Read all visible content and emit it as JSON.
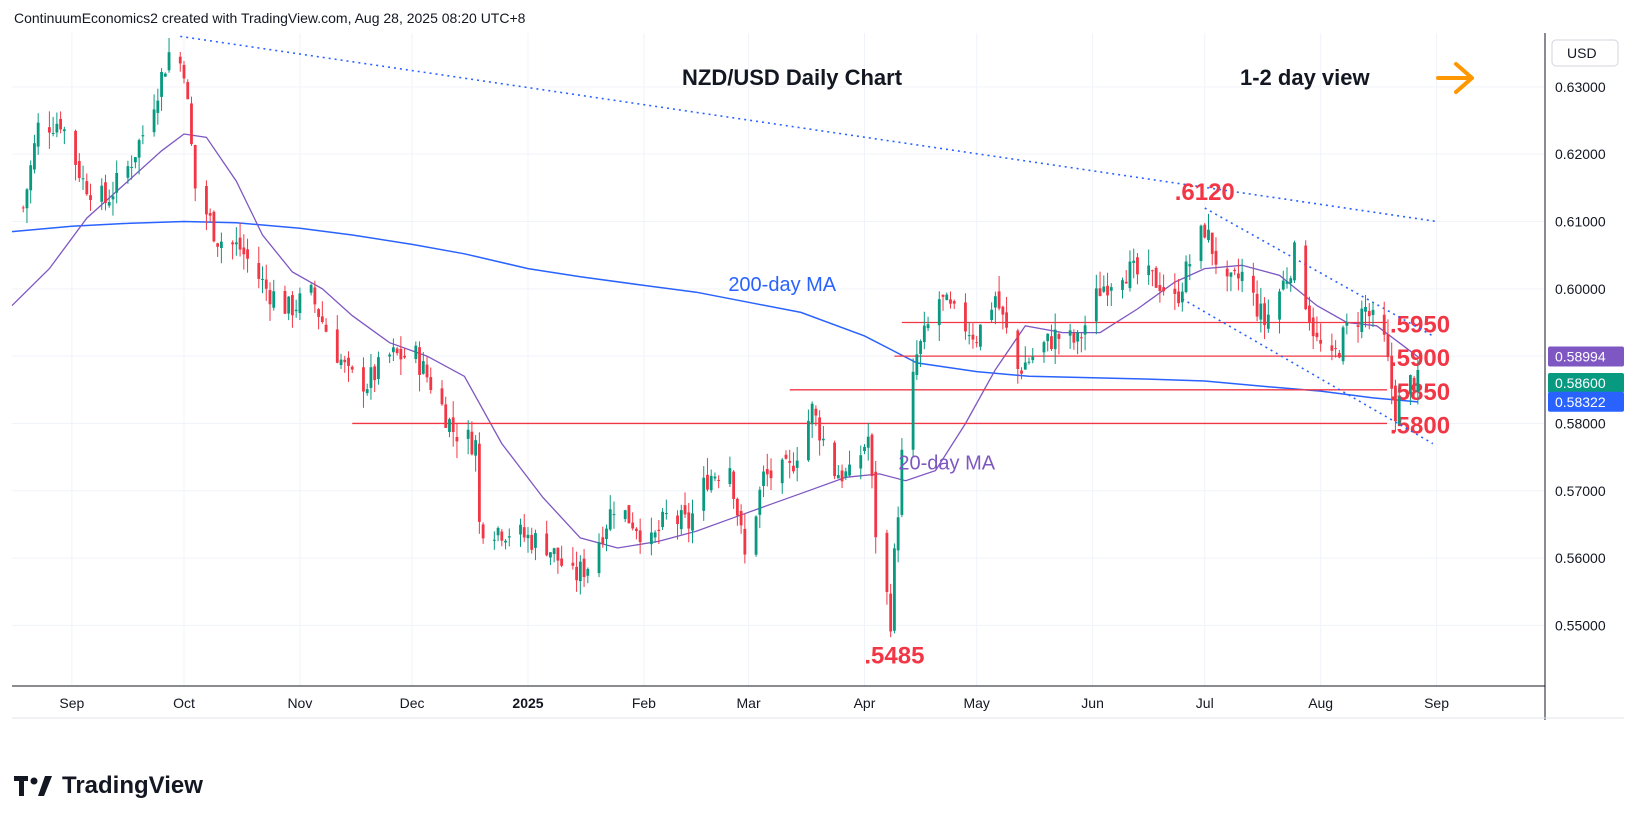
{
  "header": {
    "attribution": "ContinuumEconomics2 created with TradingView.com, Aug 28, 2025 08:20 UTC+8"
  },
  "footer": {
    "brand": "TradingView"
  },
  "chart_data": {
    "type": "candlestick",
    "title": "NZD/USD Daily Chart",
    "view_label": "1-2 day view",
    "view_arrow_icon": "arrow-right-icon",
    "currency": "USD",
    "ylim": [
      0.541,
      0.638
    ],
    "y_ticks": [
      "0.63000",
      "0.62000",
      "0.61000",
      "0.60000",
      "0.59000",
      "0.58000",
      "0.57000",
      "0.56000",
      "0.55000"
    ],
    "y_tick_values": [
      0.63,
      0.62,
      0.61,
      0.6,
      0.59,
      0.58,
      0.57,
      0.56,
      0.55
    ],
    "x_ticks": [
      "Sep",
      "Oct",
      "Nov",
      "Dec",
      "2025",
      "Feb",
      "Mar",
      "Apr",
      "May",
      "Jun",
      "Jul",
      "Aug",
      "Sep"
    ],
    "x_tick_dates": [
      "2024-09-01",
      "2024-10-01",
      "2024-11-01",
      "2024-12-01",
      "2025-01-01",
      "2025-02-01",
      "2025-03-01",
      "2025-04-01",
      "2025-05-01",
      "2025-06-01",
      "2025-07-01",
      "2025-08-01",
      "2025-09-01"
    ],
    "x_range": [
      "2024-08-16",
      "2025-09-30"
    ],
    "colors": {
      "up": "#089981",
      "down": "#f23645",
      "ma20": "#7e57c2",
      "ma200": "#2962ff",
      "levels": "#f23645",
      "trend": "#2962ff",
      "arrow": "#ff9800"
    },
    "price_badges": [
      {
        "label": "0.58994",
        "value": 0.58994,
        "color": "#7e57c2"
      },
      {
        "label": "0.58600",
        "value": 0.586,
        "color": "#089981"
      },
      {
        "label": "0.58322",
        "value": 0.58322,
        "color": "#2962ff"
      }
    ],
    "levels": [
      {
        "label": ".5950",
        "value": 0.595,
        "from": "2025-04-11"
      },
      {
        "label": ".5900",
        "value": 0.59,
        "from": "2025-04-09"
      },
      {
        "label": ".5850",
        "value": 0.585,
        "from": "2025-03-12"
      },
      {
        "label": ".5800",
        "value": 0.58,
        "from": "2024-11-15"
      }
    ],
    "annotations": [
      {
        "text": ".6120",
        "date": "2025-07-01",
        "value": 0.612
      },
      {
        "text": ".5485",
        "date": "2025-04-09",
        "value": 0.5485
      },
      {
        "text": "200-day MA",
        "date": "2025-03-10",
        "value": 0.5985,
        "color": "#2962ff"
      },
      {
        "text": "20-day MA",
        "date": "2025-04-23",
        "value": 0.572,
        "color": "#7e57c2"
      }
    ],
    "trendlines": [
      {
        "name": "long-term resistance",
        "points": [
          [
            "2024-09-30",
            0.6375
          ],
          [
            "2025-09-01",
            0.61
          ]
        ]
      },
      {
        "name": "channel top",
        "points": [
          [
            "2025-07-01",
            0.612
          ],
          [
            "2025-08-31",
            0.593
          ]
        ]
      },
      {
        "name": "channel bottom",
        "points": [
          [
            "2025-06-25",
            0.5985
          ],
          [
            "2025-08-31",
            0.577
          ]
        ]
      }
    ],
    "ma200": [
      [
        "2024-08-16",
        0.6085
      ],
      [
        "2024-09-01",
        0.6093
      ],
      [
        "2024-09-15",
        0.6097
      ],
      [
        "2024-10-01",
        0.61
      ],
      [
        "2024-10-15",
        0.6098
      ],
      [
        "2024-11-01",
        0.609
      ],
      [
        "2024-11-15",
        0.608
      ],
      [
        "2024-12-01",
        0.6066
      ],
      [
        "2024-12-15",
        0.6052
      ],
      [
        "2025-01-01",
        0.603
      ],
      [
        "2025-01-15",
        0.6018
      ],
      [
        "2025-02-01",
        0.6005
      ],
      [
        "2025-02-15",
        0.5995
      ],
      [
        "2025-03-01",
        0.598
      ],
      [
        "2025-03-15",
        0.5965
      ],
      [
        "2025-04-01",
        0.593
      ],
      [
        "2025-04-15",
        0.589
      ],
      [
        "2025-05-01",
        0.5877
      ],
      [
        "2025-05-15",
        0.587
      ],
      [
        "2025-06-01",
        0.5868
      ],
      [
        "2025-06-15",
        0.5866
      ],
      [
        "2025-07-01",
        0.5863
      ],
      [
        "2025-07-15",
        0.5856
      ],
      [
        "2025-08-01",
        0.5848
      ],
      [
        "2025-08-15",
        0.5838
      ],
      [
        "2025-08-27",
        0.5832
      ]
    ],
    "ma20": [
      [
        "2024-08-16",
        0.5975
      ],
      [
        "2024-08-26",
        0.603
      ],
      [
        "2024-09-05",
        0.6105
      ],
      [
        "2024-09-15",
        0.6155
      ],
      [
        "2024-09-25",
        0.6205
      ],
      [
        "2024-10-01",
        0.623
      ],
      [
        "2024-10-07",
        0.6225
      ],
      [
        "2024-10-15",
        0.616
      ],
      [
        "2024-10-22",
        0.608
      ],
      [
        "2024-10-30",
        0.6025
      ],
      [
        "2024-11-07",
        0.6
      ],
      [
        "2024-11-15",
        0.596
      ],
      [
        "2024-11-25",
        0.592
      ],
      [
        "2024-12-05",
        0.59
      ],
      [
        "2024-12-15",
        0.587
      ],
      [
        "2024-12-25",
        0.577
      ],
      [
        "2025-01-05",
        0.569
      ],
      [
        "2025-01-15",
        0.563
      ],
      [
        "2025-01-25",
        0.5615
      ],
      [
        "2025-02-05",
        0.5625
      ],
      [
        "2025-02-15",
        0.564
      ],
      [
        "2025-02-25",
        0.566
      ],
      [
        "2025-03-07",
        0.568
      ],
      [
        "2025-03-17",
        0.57
      ],
      [
        "2025-03-27",
        0.572
      ],
      [
        "2025-04-05",
        0.5725
      ],
      [
        "2025-04-12",
        0.5715
      ],
      [
        "2025-04-20",
        0.573
      ],
      [
        "2025-04-28",
        0.58
      ],
      [
        "2025-05-06",
        0.588
      ],
      [
        "2025-05-14",
        0.5945
      ],
      [
        "2025-05-24",
        0.5935
      ],
      [
        "2025-06-03",
        0.5935
      ],
      [
        "2025-06-13",
        0.597
      ],
      [
        "2025-06-23",
        0.601
      ],
      [
        "2025-07-01",
        0.603
      ],
      [
        "2025-07-11",
        0.6035
      ],
      [
        "2025-07-21",
        0.602
      ],
      [
        "2025-07-31",
        0.5975
      ],
      [
        "2025-08-08",
        0.595
      ],
      [
        "2025-08-16",
        0.5945
      ],
      [
        "2025-08-22",
        0.592
      ],
      [
        "2025-08-27",
        0.5899
      ]
    ],
    "path": [
      [
        "2024-08-19",
        0.612
      ],
      [
        "2024-08-23",
        0.624
      ],
      [
        "2024-08-29",
        0.625
      ],
      [
        "2024-09-04",
        0.616
      ],
      [
        "2024-09-10",
        0.613
      ],
      [
        "2024-09-16",
        0.618
      ],
      [
        "2024-09-20",
        0.623
      ],
      [
        "2024-09-27",
        0.635
      ],
      [
        "2024-10-01",
        0.633
      ],
      [
        "2024-10-04",
        0.615
      ],
      [
        "2024-10-10",
        0.6075
      ],
      [
        "2024-10-16",
        0.606
      ],
      [
        "2024-10-23",
        0.6
      ],
      [
        "2024-10-29",
        0.597
      ],
      [
        "2024-11-04",
        0.599
      ],
      [
        "2024-11-08",
        0.594
      ],
      [
        "2024-11-14",
        0.587
      ],
      [
        "2024-11-19",
        0.586
      ],
      [
        "2024-11-25",
        0.59
      ],
      [
        "2024-12-02",
        0.59
      ],
      [
        "2024-12-06",
        0.586
      ],
      [
        "2024-12-12",
        0.579
      ],
      [
        "2024-12-18",
        0.577
      ],
      [
        "2024-12-19",
        0.565
      ],
      [
        "2024-12-27",
        0.564
      ],
      [
        "2025-01-06",
        0.562
      ],
      [
        "2025-01-13",
        0.557
      ],
      [
        "2025-01-17",
        0.559
      ],
      [
        "2025-01-24",
        0.568
      ],
      [
        "2025-01-30",
        0.565
      ],
      [
        "2025-02-03",
        0.562
      ],
      [
        "2025-02-07",
        0.566
      ],
      [
        "2025-02-13",
        0.565
      ],
      [
        "2025-02-18",
        0.572
      ],
      [
        "2025-02-24",
        0.574
      ],
      [
        "2025-02-28",
        0.56
      ],
      [
        "2025-03-05",
        0.572
      ],
      [
        "2025-03-12",
        0.573
      ],
      [
        "2025-03-18",
        0.582
      ],
      [
        "2025-03-24",
        0.573
      ],
      [
        "2025-03-28",
        0.572
      ],
      [
        "2025-04-02",
        0.578
      ],
      [
        "2025-04-04",
        0.564
      ],
      [
        "2025-04-08",
        0.551
      ],
      [
        "2025-04-09",
        0.56
      ],
      [
        "2025-04-11",
        0.575
      ],
      [
        "2025-04-15",
        0.59
      ],
      [
        "2025-04-21",
        0.5985
      ],
      [
        "2025-04-25",
        0.596
      ],
      [
        "2025-05-01",
        0.593
      ],
      [
        "2025-05-06",
        0.599
      ],
      [
        "2025-05-12",
        0.588
      ],
      [
        "2025-05-16",
        0.59
      ],
      [
        "2025-05-22",
        0.593
      ],
      [
        "2025-05-28",
        0.592
      ],
      [
        "2025-06-03",
        0.6
      ],
      [
        "2025-06-09",
        0.603
      ],
      [
        "2025-06-13",
        0.602
      ],
      [
        "2025-06-19",
        0.601
      ],
      [
        "2025-06-23",
        0.598
      ],
      [
        "2025-06-27",
        0.604
      ],
      [
        "2025-07-01",
        0.609
      ],
      [
        "2025-07-07",
        0.6
      ],
      [
        "2025-07-11",
        0.602
      ],
      [
        "2025-07-17",
        0.595
      ],
      [
        "2025-07-23",
        0.602
      ],
      [
        "2025-07-25",
        0.605
      ],
      [
        "2025-07-31",
        0.592
      ],
      [
        "2025-08-04",
        0.589
      ],
      [
        "2025-08-08",
        0.594
      ],
      [
        "2025-08-13",
        0.597
      ],
      [
        "2025-08-18",
        0.592
      ],
      [
        "2025-08-21",
        0.582
      ],
      [
        "2025-08-25",
        0.586
      ],
      [
        "2025-08-27",
        0.586
      ]
    ]
  }
}
